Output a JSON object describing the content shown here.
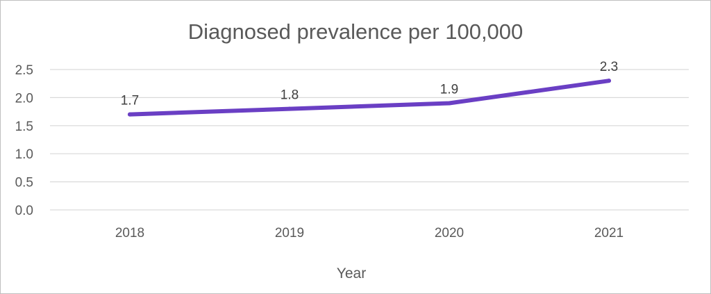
{
  "chart_data": {
    "type": "line",
    "title": "Diagnosed prevalence per 100,000",
    "xlabel": "Year",
    "ylabel": "",
    "categories": [
      "2018",
      "2019",
      "2020",
      "2021"
    ],
    "series": [
      {
        "values": [
          1.7,
          1.8,
          1.9,
          2.3
        ],
        "color": "#6A3FC4"
      }
    ],
    "data_labels": [
      "1.7",
      "1.8",
      "1.9",
      "2.3"
    ],
    "ylim": [
      0,
      2.5
    ],
    "y_ticks": [
      "0.0",
      "0.5",
      "1.0",
      "1.5",
      "2.0",
      "2.5"
    ],
    "grid": true,
    "legend": "none"
  }
}
